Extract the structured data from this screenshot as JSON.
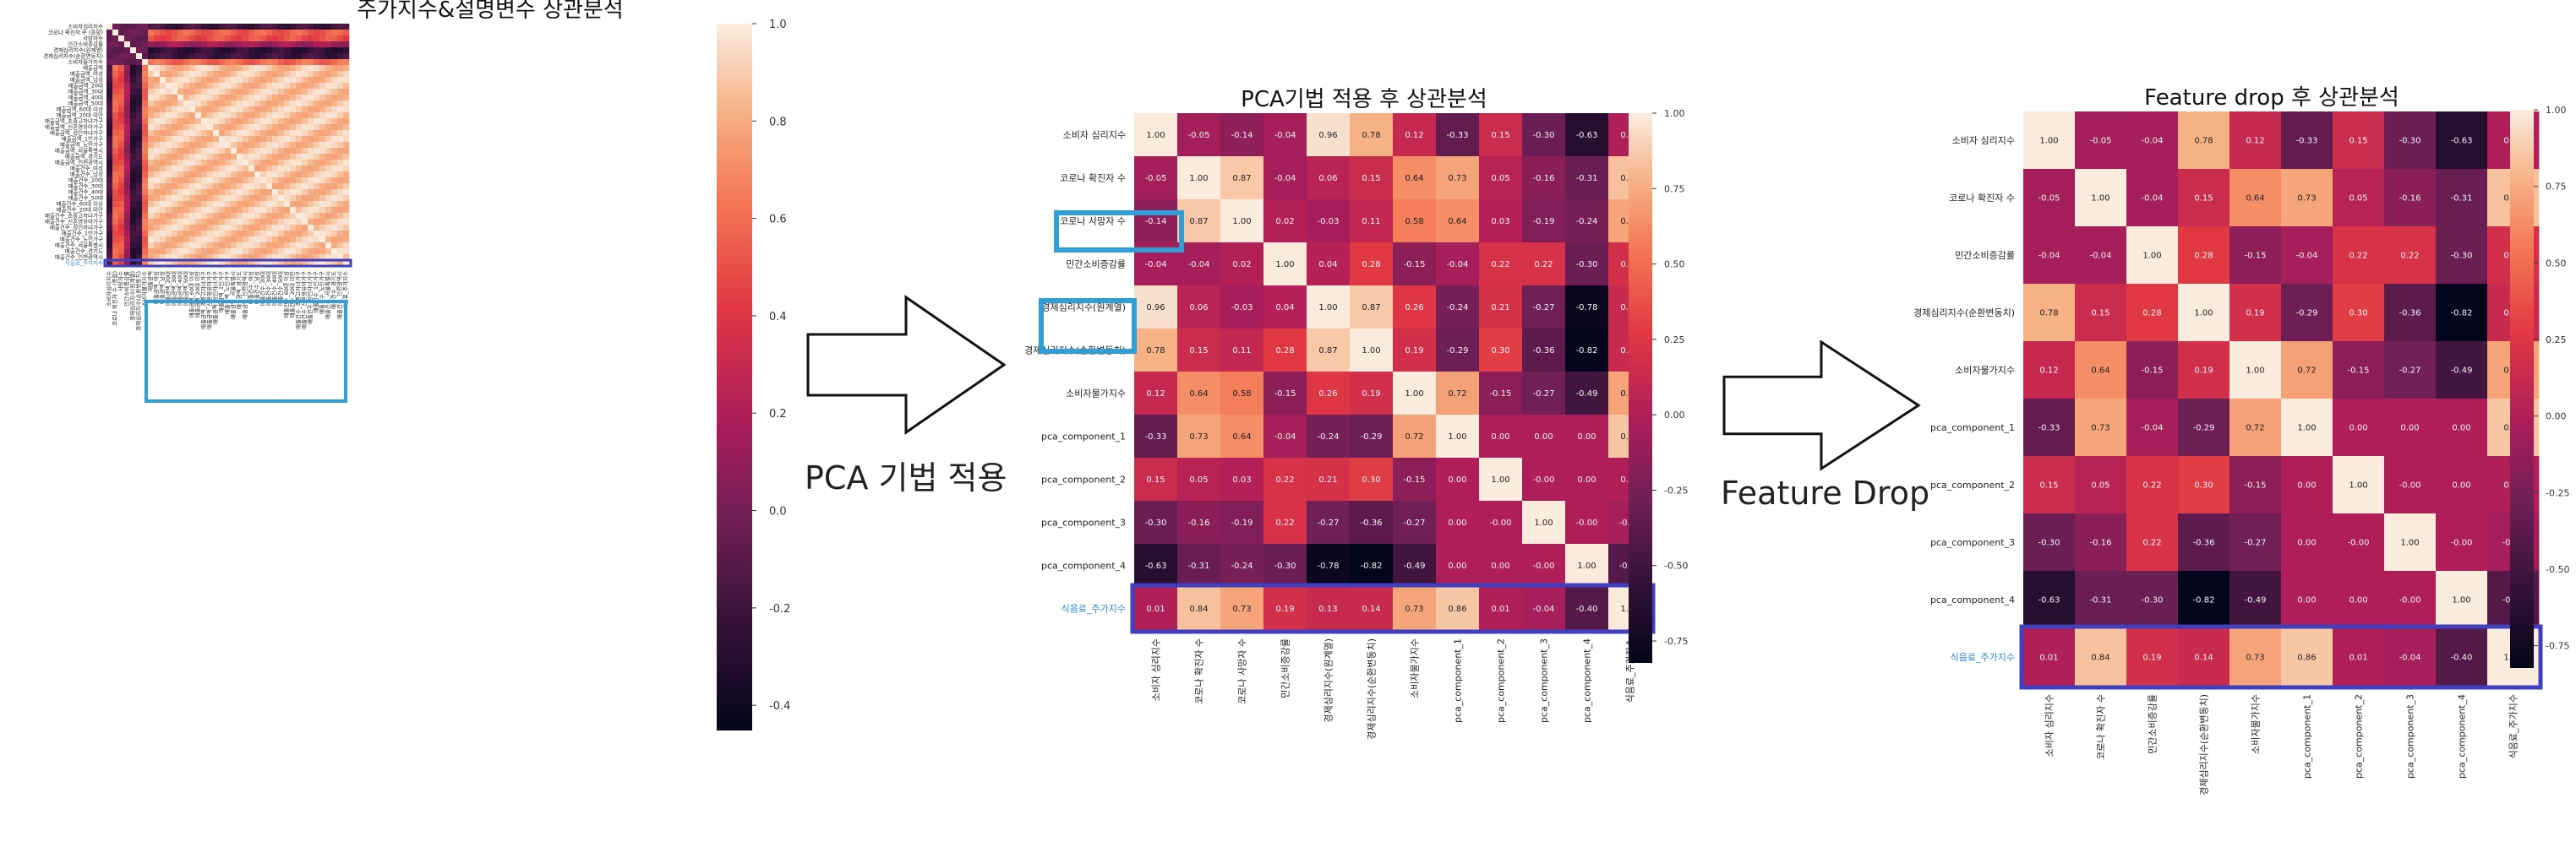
{
  "charts": [
    {
      "title": "주가지수&설명변수 상관분석",
      "labels": [
        "소비자심리지수",
        "코로나 확진자 수 (증합)",
        "사망자수",
        "민간소비증감률",
        "경제심리지수(원계열)",
        "경제심리지수(순환변동치)",
        "소비자물가지수",
        "매출금액",
        "매출금액_여성",
        "매출금액_남성",
        "매출금액_20대",
        "매출금액_30대",
        "매출금액_40대",
        "매출금액_50대",
        "매출금액_60대 이상",
        "매출금액_20대 미만",
        "매출금액_초중고자녀가구",
        "매출금액_신혼영유아가구",
        "매출금액_성인자녀가구",
        "매출금액_1인가구",
        "매출금액_노인가구",
        "매출금액_서울특별시",
        "매출금액_경기도",
        "매출금액_인천광역시",
        "매출건수_여성",
        "매출건수_남성",
        "매출건수_20대",
        "매출건수_30대",
        "매출건수_40대",
        "매출건수_50대",
        "매출건수_60대 이상",
        "매출건수_20대 미만",
        "매출건수_초중고자녀가구",
        "매출건수_신혼영유아가구",
        "매출건수_성인자녀가구",
        "매출건수_1인가구",
        "매출건수_노인가구",
        "매출건수_서울특별시",
        "매출건수_경기도",
        "매출건수_인천광역시",
        "식음료_주가지수"
      ],
      "colorbar_ticks": [
        "1.0",
        "0.8",
        "0.6",
        "0.4",
        "0.2",
        "0.0",
        "-0.2",
        "-0.4"
      ]
    },
    {
      "title": "PCA기법 적용 후 상관분석",
      "labels": [
        "소비자 심리지수",
        "코로나 확진자 수",
        "코로나 사망자 수",
        "민간소비증감률",
        "경제심리지수(원계열)",
        "경제심리지수(순환변동치)",
        "소비자물가지수",
        "pca_component_1",
        "pca_component_2",
        "pca_component_3",
        "pca_component_4",
        "식음료_주가지수"
      ],
      "colorbar_ticks": [
        "1.00",
        "0.75",
        "0.50",
        "0.25",
        "0.00",
        "-0.25",
        "-0.50",
        "-0.75"
      ]
    },
    {
      "title": "Feature drop 후 상관분석",
      "labels": [
        "소비자 심리지수",
        "코로나 확진자 수",
        "민간소비증감률",
        "경제심리지수(순환변동치)",
        "소비자물가지수",
        "pca_component_1",
        "pca_component_2",
        "pca_component_3",
        "pca_component_4",
        "식음료_주가지수"
      ],
      "colorbar_ticks": [
        "1.00",
        "0.75",
        "0.50",
        "0.25",
        "0.00",
        "-0.25",
        "-0.50",
        "-0.75"
      ]
    }
  ],
  "arrows": [
    {
      "label": "PCA 기법 적용"
    },
    {
      "label": "Feature Drop"
    }
  ],
  "chart_data": [
    {
      "type": "heatmap",
      "title": "주가지수&설명변수 상관분석",
      "size": 41,
      "vmin": -0.45,
      "vmax": 1.0,
      "note_values": "41x41 correlation matrix; individual cell values too small to read precisely",
      "highlighted_rows": [
        "식음료_주가지수"
      ]
    },
    {
      "type": "heatmap",
      "title": "PCA기법 적용 후 상관분석",
      "vmin": -0.82,
      "vmax": 1.0,
      "categories": [
        "소비자 심리지수",
        "코로나 확진자 수",
        "코로나 사망자 수",
        "민간소비증감률",
        "경제심리지수(원계열)",
        "경제심리지수(순환변동치)",
        "소비자물가지수",
        "pca_component_1",
        "pca_component_2",
        "pca_component_3",
        "pca_component_4",
        "식음료_주가지수"
      ],
      "matrix": [
        [
          1.0,
          -0.05,
          -0.14,
          -0.04,
          0.96,
          0.78,
          0.12,
          -0.33,
          0.15,
          -0.3,
          -0.63,
          0.01
        ],
        [
          -0.05,
          1.0,
          0.87,
          -0.04,
          0.06,
          0.15,
          0.64,
          0.73,
          0.05,
          -0.16,
          -0.31,
          0.84
        ],
        [
          -0.14,
          0.87,
          1.0,
          0.02,
          -0.03,
          0.11,
          0.58,
          0.64,
          0.03,
          -0.19,
          -0.24,
          0.73
        ],
        [
          -0.04,
          -0.04,
          0.02,
          1.0,
          0.04,
          0.28,
          -0.15,
          -0.04,
          0.22,
          0.22,
          -0.3,
          0.19
        ],
        [
          0.96,
          0.06,
          -0.03,
          0.04,
          1.0,
          0.87,
          0.26,
          -0.24,
          0.21,
          -0.27,
          -0.78,
          0.13
        ],
        [
          0.78,
          0.15,
          0.11,
          0.28,
          0.87,
          1.0,
          0.19,
          -0.29,
          0.3,
          -0.36,
          -0.82,
          0.14
        ],
        [
          0.12,
          0.64,
          0.58,
          -0.15,
          0.26,
          0.19,
          1.0,
          0.72,
          -0.15,
          -0.27,
          -0.49,
          0.73
        ],
        [
          -0.33,
          0.73,
          0.64,
          -0.04,
          -0.24,
          -0.29,
          0.72,
          1.0,
          0.0,
          0.0,
          0.0,
          0.86
        ],
        [
          0.15,
          0.05,
          0.03,
          0.22,
          0.21,
          0.3,
          -0.15,
          0.0,
          1.0,
          -0.0,
          0.0,
          0.01
        ],
        [
          -0.3,
          -0.16,
          -0.19,
          0.22,
          -0.27,
          -0.36,
          -0.27,
          0.0,
          -0.0,
          1.0,
          -0.0,
          -0.04
        ],
        [
          -0.63,
          -0.31,
          -0.24,
          -0.3,
          -0.78,
          -0.82,
          -0.49,
          0.0,
          0.0,
          -0.0,
          1.0,
          -0.4
        ],
        [
          0.01,
          0.84,
          0.73,
          0.19,
          0.13,
          0.14,
          0.73,
          0.86,
          0.01,
          -0.04,
          -0.4,
          1.0
        ]
      ],
      "cell_text": [
        [
          "1.00",
          "-0.05",
          "-0.14",
          "-0.04",
          "0.96",
          "0.78",
          "0.12",
          "-0.33",
          "0.15",
          "-0.30",
          "-0.63",
          "0.01"
        ],
        [
          "-0.05",
          "1.00",
          "0.87",
          "-0.04",
          "0.06",
          "0.15",
          "0.64",
          "0.73",
          "0.05",
          "-0.16",
          "-0.31",
          "0.84"
        ],
        [
          "-0.14",
          "0.87",
          "1.00",
          "0.02",
          "-0.03",
          "0.11",
          "0.58",
          "0.64",
          "0.03",
          "-0.19",
          "-0.24",
          "0.73"
        ],
        [
          "-0.04",
          "-0.04",
          "0.02",
          "1.00",
          "0.04",
          "0.28",
          "-0.15",
          "-0.04",
          "0.22",
          "0.22",
          "-0.30",
          "0.19"
        ],
        [
          "0.96",
          "0.06",
          "-0.03",
          "0.04",
          "1.00",
          "0.87",
          "0.26",
          "-0.24",
          "0.21",
          "-0.27",
          "-0.78",
          "0.13"
        ],
        [
          "0.78",
          "0.15",
          "0.11",
          "0.28",
          "0.87",
          "1.00",
          "0.19",
          "-0.29",
          "0.30",
          "-0.36",
          "-0.82",
          "0.14"
        ],
        [
          "0.12",
          "0.64",
          "0.58",
          "-0.15",
          "0.26",
          "0.19",
          "1.00",
          "0.72",
          "-0.15",
          "-0.27",
          "-0.49",
          "0.73"
        ],
        [
          "-0.33",
          "0.73",
          "0.64",
          "-0.04",
          "-0.24",
          "-0.29",
          "0.72",
          "1.00",
          "0.00",
          "0.00",
          "0.00",
          "0.86"
        ],
        [
          "0.15",
          "0.05",
          "0.03",
          "0.22",
          "0.21",
          "0.30",
          "-0.15",
          "0.00",
          "1.00",
          "-0.00",
          "0.00",
          "0.01"
        ],
        [
          "-0.30",
          "-0.16",
          "-0.19",
          "0.22",
          "-0.27",
          "-0.36",
          "-0.27",
          "0.00",
          "-0.00",
          "1.00",
          "-0.00",
          "-0.04"
        ],
        [
          "-0.63",
          "-0.31",
          "-0.24",
          "-0.30",
          "-0.78",
          "-0.82",
          "-0.49",
          "0.00",
          "0.00",
          "-0.00",
          "1.00",
          "-0.40"
        ],
        [
          "0.01",
          "0.84",
          "0.73",
          "0.19",
          "0.13",
          "0.14",
          "0.73",
          "0.86",
          "0.01",
          "-0.04",
          "-0.40",
          "1.00"
        ]
      ],
      "highlighted_rows": [
        "코로나 사망자 수",
        "경제심리지수(원계열)",
        "식음료_주가지수"
      ]
    },
    {
      "type": "heatmap",
      "title": "Feature drop 후 상관분석",
      "vmin": -0.82,
      "vmax": 1.0,
      "categories": [
        "소비자 심리지수",
        "코로나 확진자 수",
        "민간소비증감률",
        "경제심리지수(순환변동치)",
        "소비자물가지수",
        "pca_component_1",
        "pca_component_2",
        "pca_component_3",
        "pca_component_4",
        "식음료_주가지수"
      ],
      "matrix": [
        [
          1.0,
          -0.05,
          -0.04,
          0.78,
          0.12,
          -0.33,
          0.15,
          -0.3,
          -0.63,
          0.01
        ],
        [
          -0.05,
          1.0,
          -0.04,
          0.15,
          0.64,
          0.73,
          0.05,
          -0.16,
          -0.31,
          0.84
        ],
        [
          -0.04,
          -0.04,
          1.0,
          0.28,
          -0.15,
          -0.04,
          0.22,
          0.22,
          -0.3,
          0.19
        ],
        [
          0.78,
          0.15,
          0.28,
          1.0,
          0.19,
          -0.29,
          0.3,
          -0.36,
          -0.82,
          0.14
        ],
        [
          0.12,
          0.64,
          -0.15,
          0.19,
          1.0,
          0.72,
          -0.15,
          -0.27,
          -0.49,
          0.73
        ],
        [
          -0.33,
          0.73,
          -0.04,
          -0.29,
          0.72,
          1.0,
          0.0,
          0.0,
          0.0,
          0.86
        ],
        [
          0.15,
          0.05,
          0.22,
          0.3,
          -0.15,
          0.0,
          1.0,
          -0.0,
          0.0,
          0.01
        ],
        [
          -0.3,
          -0.16,
          0.22,
          -0.36,
          -0.27,
          0.0,
          -0.0,
          1.0,
          -0.0,
          -0.04
        ],
        [
          -0.63,
          -0.31,
          -0.3,
          -0.82,
          -0.49,
          0.0,
          0.0,
          -0.0,
          1.0,
          -0.4
        ],
        [
          0.01,
          0.84,
          0.19,
          0.14,
          0.73,
          0.86,
          0.01,
          -0.04,
          -0.4,
          1.0
        ]
      ],
      "cell_text": [
        [
          "1.00",
          "-0.05",
          "-0.04",
          "0.78",
          "0.12",
          "-0.33",
          "0.15",
          "-0.30",
          "-0.63",
          "0.01"
        ],
        [
          "-0.05",
          "1.00",
          "-0.04",
          "0.15",
          "0.64",
          "0.73",
          "0.05",
          "-0.16",
          "-0.31",
          "0.84"
        ],
        [
          "-0.04",
          "-0.04",
          "1.00",
          "0.28",
          "-0.15",
          "-0.04",
          "0.22",
          "0.22",
          "-0.30",
          "0.19"
        ],
        [
          "0.78",
          "0.15",
          "0.28",
          "1.00",
          "0.19",
          "-0.29",
          "0.30",
          "-0.36",
          "-0.82",
          "0.14"
        ],
        [
          "0.12",
          "0.64",
          "-0.15",
          "0.19",
          "1.00",
          "0.72",
          "-0.15",
          "-0.27",
          "-0.49",
          "0.73"
        ],
        [
          "-0.33",
          "0.73",
          "-0.04",
          "-0.29",
          "0.72",
          "1.00",
          "0.00",
          "0.00",
          "0.00",
          "0.86"
        ],
        [
          "0.15",
          "0.05",
          "0.22",
          "0.30",
          "-0.15",
          "0.00",
          "1.00",
          "-0.00",
          "0.00",
          "0.01"
        ],
        [
          "-0.30",
          "-0.16",
          "0.22",
          "-0.36",
          "-0.27",
          "0.00",
          "-0.00",
          "1.00",
          "-0.00",
          "-0.04"
        ],
        [
          "-0.63",
          "-0.31",
          "-0.30",
          "-0.82",
          "-0.49",
          "0.00",
          "0.00",
          "-0.00",
          "1.00",
          "-0.40"
        ],
        [
          "0.01",
          "0.84",
          "0.19",
          "0.14",
          "0.73",
          "0.86",
          "0.01",
          "-0.04",
          "-0.40",
          "1.00"
        ]
      ],
      "highlighted_rows": [
        "식음료_주가지수"
      ]
    }
  ],
  "colors": {
    "highlight_blue_box": "#2e9fd8",
    "highlight_purple_box": "#3f3fbf",
    "highlight_label_text": "#2e86d8"
  }
}
